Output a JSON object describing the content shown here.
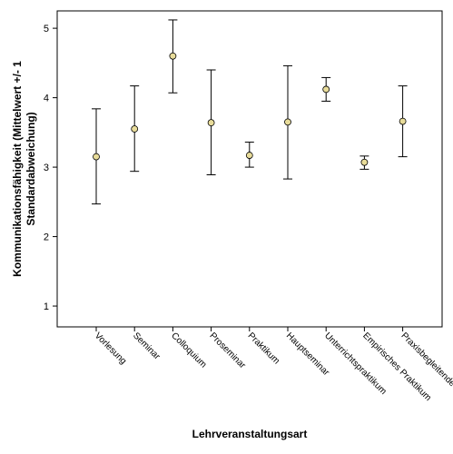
{
  "chart_data": {
    "type": "errorbar",
    "xlabel": "Lehrveranstaltungsart",
    "ylabel_lines": [
      "Kommunikationsfähigkeit (Mittelwert +/- 1",
      "Standardabweichung)"
    ],
    "ylim": [
      0.7,
      5.25
    ],
    "yticks": [
      1,
      2,
      3,
      4,
      5
    ],
    "grid": false,
    "marker_color": "#e8dc9a",
    "categories": [
      "Vorlesung",
      "Seminar",
      "Colloquium",
      "Proseminar",
      "Praktikum",
      "Hauptseminar",
      "Unterrichtspraktikum",
      "Empirisches Praktikum",
      "Praxisbegleitende LV"
    ],
    "series": [
      {
        "mean": [
          3.15,
          3.55,
          4.6,
          3.64,
          3.17,
          3.65,
          4.12,
          3.07,
          3.66
        ],
        "lower": [
          2.47,
          2.94,
          4.07,
          2.89,
          3.0,
          2.83,
          3.95,
          2.97,
          3.15
        ],
        "upper": [
          3.84,
          4.17,
          5.12,
          4.4,
          3.36,
          4.46,
          4.29,
          3.16,
          4.17
        ]
      }
    ]
  }
}
